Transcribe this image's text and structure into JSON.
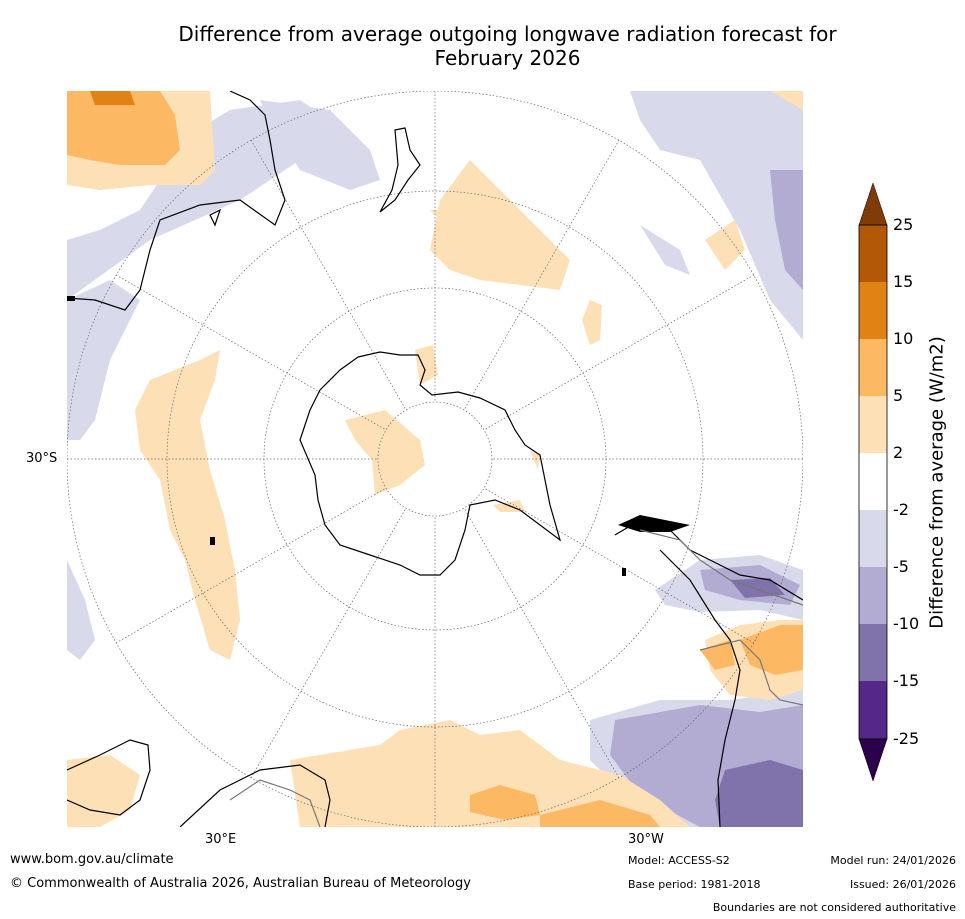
{
  "title": {
    "line1": "Difference from average outgoing longwave radiation forecast for",
    "line2": "February 2026"
  },
  "axis_labels": {
    "lat_left": "30°S",
    "lon_bottom_left": "30°E",
    "lon_bottom_right": "30°W"
  },
  "colorbar": {
    "title": "Difference from average (W/m2)",
    "ticks": [
      "25",
      "15",
      "10",
      "5",
      "2",
      "-2",
      "-5",
      "-10",
      "-15",
      "-25"
    ],
    "colors": {
      "over": "#7f3b08",
      "15_25": "#b35806",
      "10_15": "#e08214",
      "5_10": "#fdb863",
      "2_5": "#fee0b6",
      "neutral": "#ffffff",
      "m2_m5": "#d8daeb",
      "m5_m10": "#b2abd2",
      "m10_m15": "#8073ac",
      "m15_m25": "#542788",
      "under": "#2d004b"
    }
  },
  "footer": {
    "website": "www.bom.gov.au/climate",
    "copyright": "© Commonwealth of Australia 2026, Australian Bureau of Meteorology",
    "model": "Model: ACCESS-S2",
    "base_period": "Base period: 1981-2018",
    "model_run": "Model run: 24/01/2026",
    "issued": "Issued: 26/01/2026",
    "disclaimer": "Boundaries are not considered authoritative"
  }
}
